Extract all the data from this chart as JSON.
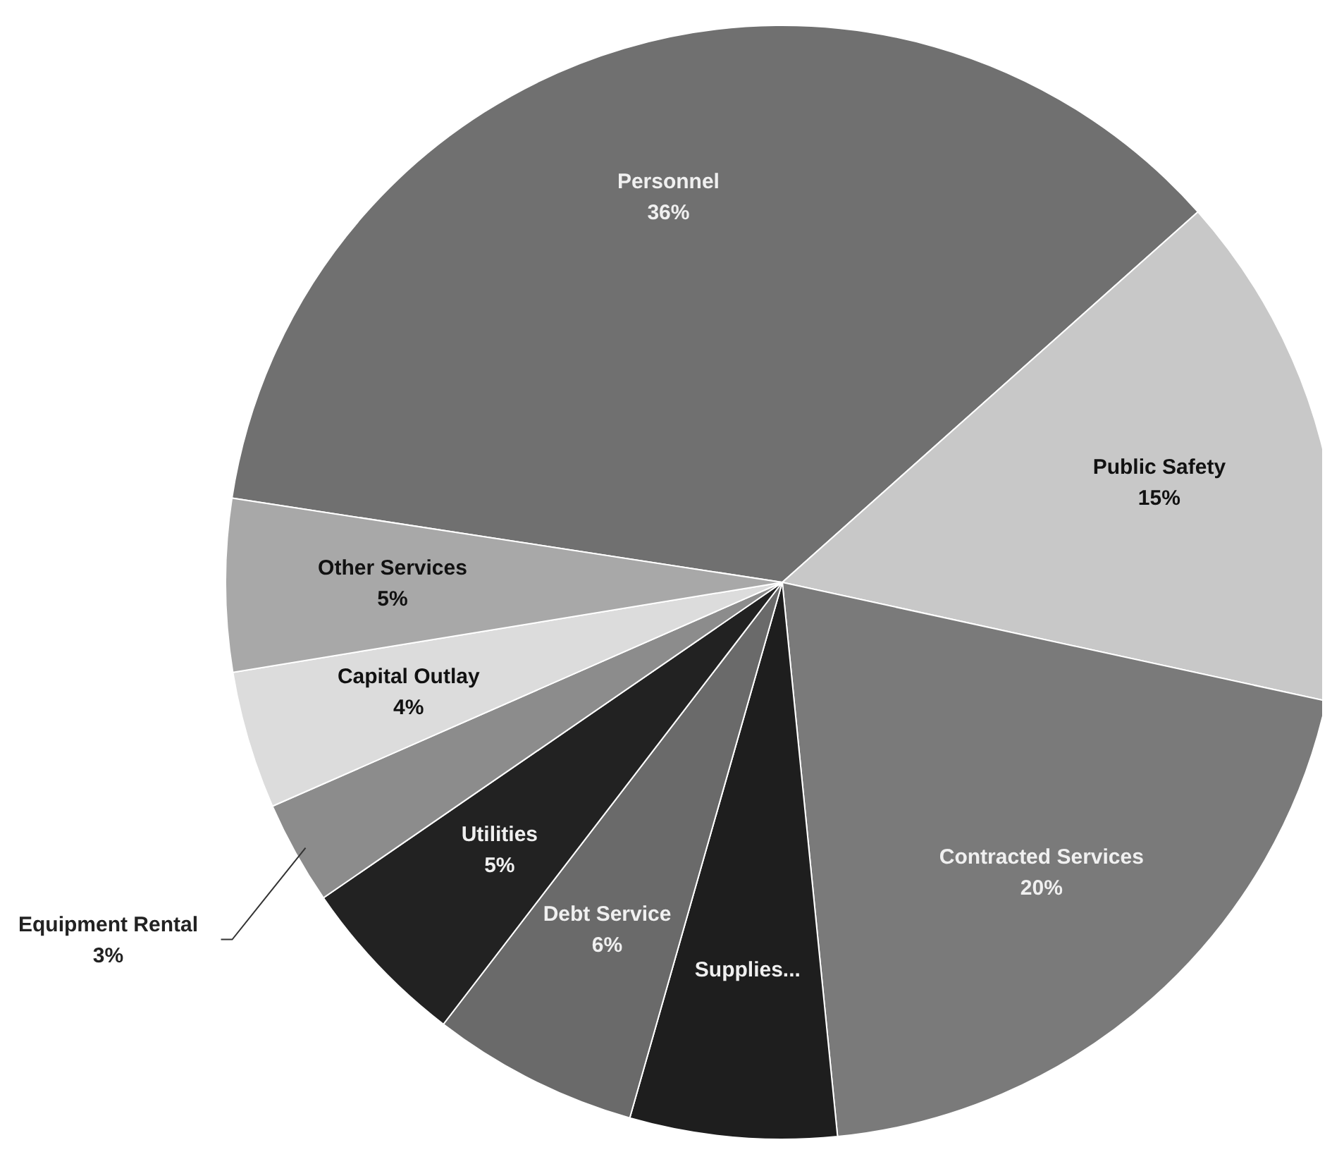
{
  "chart_data": {
    "type": "pie",
    "categories": [
      "Personnel",
      "Public Safety",
      "Contracted Services",
      "Supplies...",
      "Debt Service",
      "Utilities",
      "Equipment Rental",
      "Capital Outlay",
      "Other Services"
    ],
    "values": [
      36,
      15,
      20,
      6,
      6,
      5,
      3,
      4,
      5
    ],
    "colors": [
      "#707070",
      "#c8c8c8",
      "#7a7a7a",
      "#1e1e1e",
      "#6a6a6a",
      "#222222",
      "#8c8c8c",
      "#dcdcdc",
      "#a8a8a8"
    ],
    "value_labels": [
      "36%",
      "15%",
      "20%",
      null,
      "6%",
      "5%",
      "3%",
      "4%",
      "5%"
    ],
    "legend": false
  }
}
